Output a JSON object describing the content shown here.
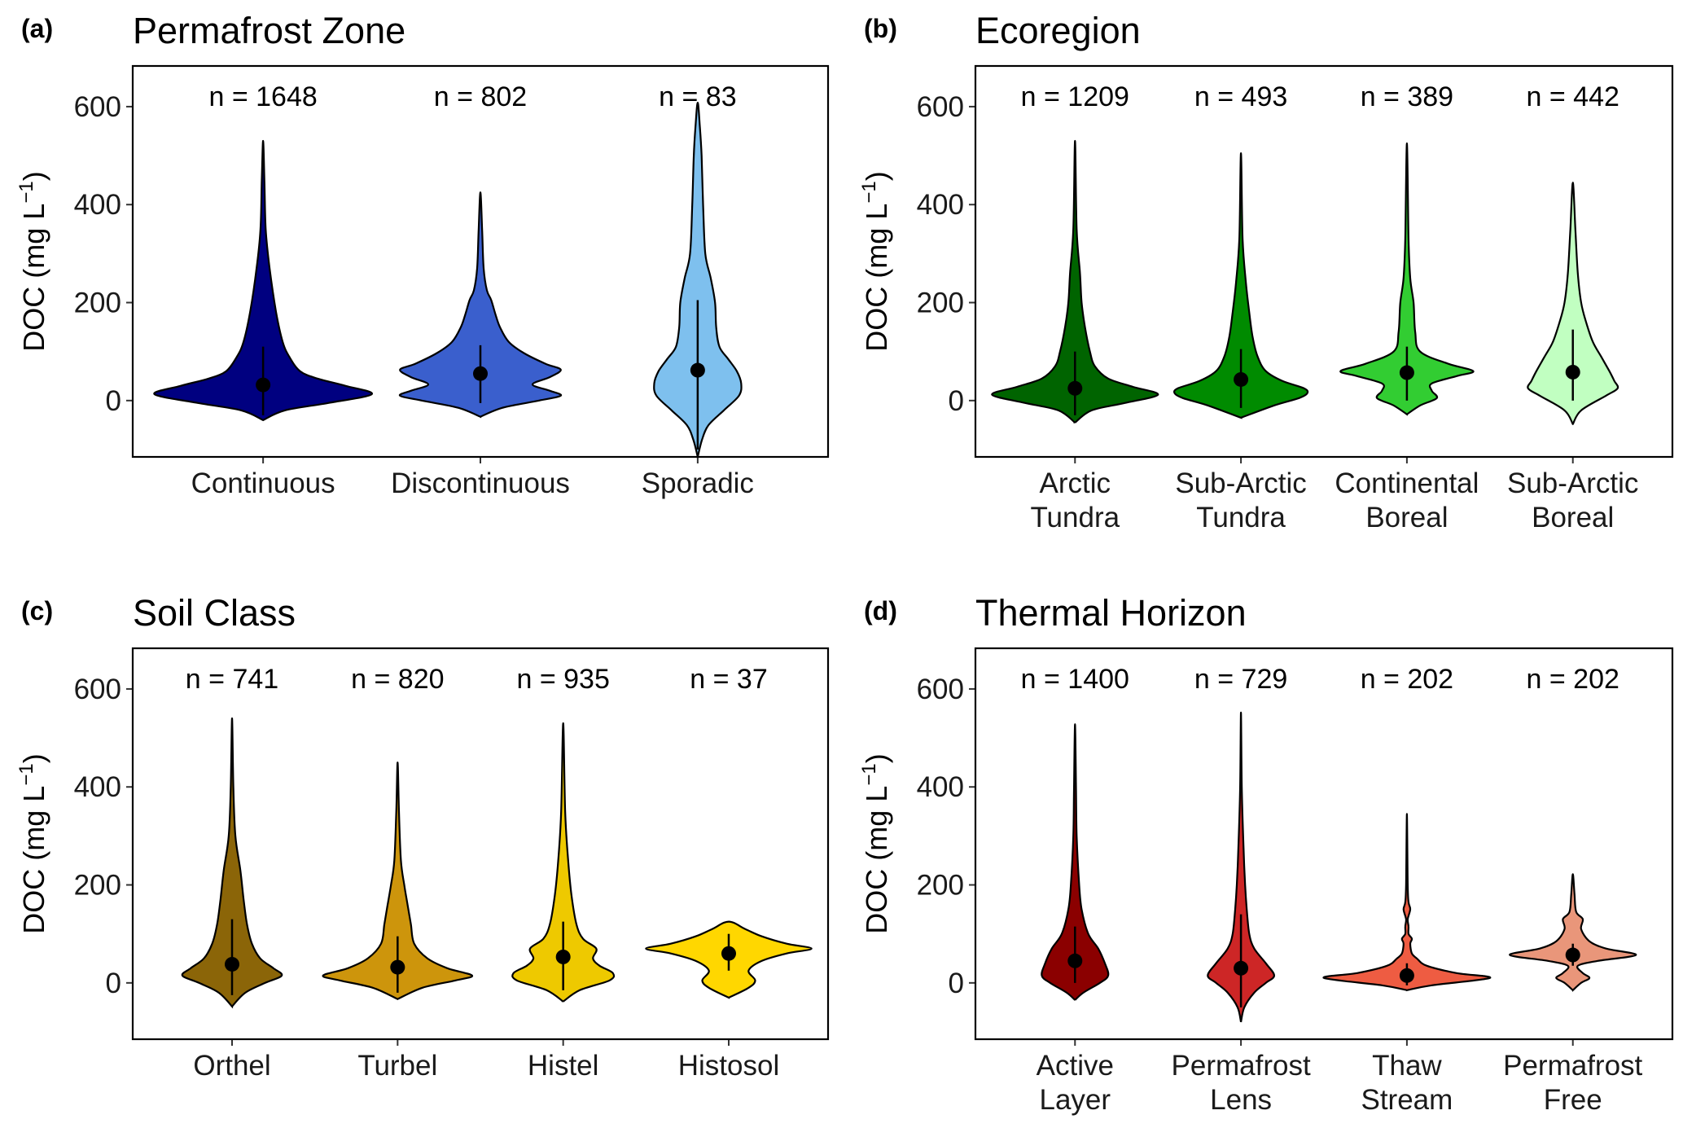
{
  "chart_data": [
    {
      "type": "violin",
      "panel_label": "(a)",
      "title": "Permafrost Zone",
      "ylabel": {
        "main": "DOC (mg L",
        "sup": "−1",
        "close": ")"
      },
      "ylim": [
        -115,
        683
      ],
      "yticks": [
        "0",
        "200",
        "400",
        "600"
      ],
      "categories": [
        [
          "Continuous"
        ],
        [
          "Discontinuous"
        ],
        [
          "Sporadic"
        ]
      ],
      "n_labels": [
        "n = 1648",
        "n = 802",
        "n = 83"
      ],
      "colors": [
        "#000080",
        "#3a5fcd",
        "#7ec0ee"
      ],
      "medians": [
        32,
        55,
        62
      ],
      "lines": [
        [
          -30,
          110
        ],
        [
          -5,
          113
        ],
        [
          -100,
          205
        ]
      ],
      "density": [
        [
          [
            -40,
            0
          ],
          [
            -20,
            0.1
          ],
          [
            -5,
            0.3
          ],
          [
            13,
            0.5
          ],
          [
            30,
            0.38
          ],
          [
            45,
            0.25
          ],
          [
            60,
            0.17
          ],
          [
            90,
            0.12
          ],
          [
            120,
            0.09
          ],
          [
            180,
            0.06
          ],
          [
            270,
            0.03
          ],
          [
            350,
            0.012
          ],
          [
            450,
            0.006
          ],
          [
            530,
            0
          ]
        ],
        [
          [
            -33,
            0
          ],
          [
            -15,
            0.1
          ],
          [
            0,
            0.27
          ],
          [
            10,
            0.37
          ],
          [
            20,
            0.32
          ],
          [
            33,
            0.24
          ],
          [
            48,
            0.32
          ],
          [
            63,
            0.37
          ],
          [
            75,
            0.3
          ],
          [
            97,
            0.2
          ],
          [
            120,
            0.13
          ],
          [
            150,
            0.09
          ],
          [
            175,
            0.07
          ],
          [
            205,
            0.05
          ],
          [
            225,
            0.03
          ],
          [
            270,
            0.015
          ],
          [
            350,
            0.008
          ],
          [
            425,
            0
          ]
        ],
        [
          [
            -115,
            0
          ],
          [
            -80,
            0.02
          ],
          [
            -50,
            0.05
          ],
          [
            -20,
            0.12
          ],
          [
            10,
            0.19
          ],
          [
            35,
            0.2
          ],
          [
            60,
            0.18
          ],
          [
            85,
            0.14
          ],
          [
            110,
            0.1
          ],
          [
            150,
            0.085
          ],
          [
            200,
            0.08
          ],
          [
            250,
            0.06
          ],
          [
            300,
            0.035
          ],
          [
            400,
            0.025
          ],
          [
            500,
            0.018
          ],
          [
            560,
            0.01
          ],
          [
            608,
            0
          ]
        ]
      ]
    },
    {
      "type": "violin",
      "panel_label": "(b)",
      "title": "Ecoregion",
      "ylabel": {
        "main": "DOC (mg L",
        "sup": "−1",
        "close": ")"
      },
      "ylim": [
        -115,
        683
      ],
      "yticks": [
        "0",
        "200",
        "400",
        "600"
      ],
      "categories": [
        [
          "Arctic",
          "Tundra"
        ],
        [
          "Sub-Arctic",
          "Tundra"
        ],
        [
          "Continental",
          "Boreal"
        ],
        [
          "Sub-Arctic",
          "Boreal"
        ]
      ],
      "n_labels": [
        "n = 1209",
        "n = 493",
        "n = 389",
        "n = 442"
      ],
      "colors": [
        "#006400",
        "#008b00",
        "#32cd32",
        "#c1ffc1"
      ],
      "medians": [
        25,
        43,
        57,
        58
      ],
      "lines": [
        [
          -30,
          100
        ],
        [
          -15,
          105
        ],
        [
          0,
          110
        ],
        [
          0,
          145
        ]
      ],
      "density": [
        [
          [
            -45,
            0
          ],
          [
            -20,
            0.1
          ],
          [
            -5,
            0.3
          ],
          [
            12,
            0.5
          ],
          [
            28,
            0.35
          ],
          [
            45,
            0.2
          ],
          [
            70,
            0.12
          ],
          [
            100,
            0.09
          ],
          [
            150,
            0.06
          ],
          [
            200,
            0.04
          ],
          [
            260,
            0.03
          ],
          [
            350,
            0.01
          ],
          [
            530,
            0
          ]
        ],
        [
          [
            -35,
            0
          ],
          [
            -10,
            0.2
          ],
          [
            5,
            0.35
          ],
          [
            15,
            0.4
          ],
          [
            25,
            0.38
          ],
          [
            40,
            0.25
          ],
          [
            60,
            0.15
          ],
          [
            90,
            0.1
          ],
          [
            130,
            0.07
          ],
          [
            180,
            0.05
          ],
          [
            240,
            0.03
          ],
          [
            330,
            0.01
          ],
          [
            505,
            0
          ]
        ],
        [
          [
            -28,
            0
          ],
          [
            -10,
            0.08
          ],
          [
            5,
            0.18
          ],
          [
            20,
            0.15
          ],
          [
            35,
            0.15
          ],
          [
            50,
            0.3
          ],
          [
            60,
            0.4
          ],
          [
            75,
            0.25
          ],
          [
            100,
            0.08
          ],
          [
            140,
            0.05
          ],
          [
            200,
            0.04
          ],
          [
            250,
            0.02
          ],
          [
            330,
            0.01
          ],
          [
            525,
            0
          ]
        ],
        [
          [
            -48,
            0
          ],
          [
            -20,
            0.05
          ],
          [
            10,
            0.2
          ],
          [
            25,
            0.27
          ],
          [
            40,
            0.25
          ],
          [
            60,
            0.22
          ],
          [
            90,
            0.17
          ],
          [
            120,
            0.12
          ],
          [
            160,
            0.08
          ],
          [
            200,
            0.05
          ],
          [
            260,
            0.03
          ],
          [
            350,
            0.015
          ],
          [
            445,
            0
          ]
        ]
      ]
    },
    {
      "type": "violin",
      "panel_label": "(c)",
      "title": "Soil Class",
      "ylabel": {
        "main": "DOC (mg L",
        "sup": "−1",
        "close": ")"
      },
      "ylim": [
        -115,
        683
      ],
      "yticks": [
        "0",
        "200",
        "400",
        "600"
      ],
      "categories": [
        [
          "Orthel"
        ],
        [
          "Turbel"
        ],
        [
          "Histel"
        ],
        [
          "Histosol"
        ]
      ],
      "n_labels": [
        "n = 741",
        "n = 820",
        "n = 935",
        "n = 37"
      ],
      "colors": [
        "#8b6508",
        "#cd950c",
        "#eec900",
        "#ffd700"
      ],
      "medians": [
        38,
        32,
        53,
        60
      ],
      "lines": [
        [
          -25,
          130
        ],
        [
          -20,
          95
        ],
        [
          -15,
          125
        ],
        [
          25,
          100
        ]
      ],
      "density": [
        [
          [
            -48,
            0
          ],
          [
            -20,
            0.08
          ],
          [
            0,
            0.2
          ],
          [
            15,
            0.3
          ],
          [
            30,
            0.25
          ],
          [
            50,
            0.17
          ],
          [
            80,
            0.12
          ],
          [
            120,
            0.09
          ],
          [
            170,
            0.07
          ],
          [
            230,
            0.05
          ],
          [
            300,
            0.02
          ],
          [
            400,
            0.008
          ],
          [
            540,
            0
          ]
        ],
        [
          [
            -33,
            0
          ],
          [
            -10,
            0.15
          ],
          [
            5,
            0.35
          ],
          [
            15,
            0.45
          ],
          [
            30,
            0.3
          ],
          [
            50,
            0.18
          ],
          [
            80,
            0.1
          ],
          [
            120,
            0.08
          ],
          [
            160,
            0.06
          ],
          [
            200,
            0.04
          ],
          [
            250,
            0.02
          ],
          [
            350,
            0.008
          ],
          [
            450,
            0
          ]
        ],
        [
          [
            -38,
            0
          ],
          [
            -15,
            0.1
          ],
          [
            5,
            0.28
          ],
          [
            20,
            0.3
          ],
          [
            35,
            0.22
          ],
          [
            50,
            0.18
          ],
          [
            70,
            0.2
          ],
          [
            90,
            0.12
          ],
          [
            120,
            0.08
          ],
          [
            180,
            0.05
          ],
          [
            250,
            0.03
          ],
          [
            350,
            0.012
          ],
          [
            530,
            0
          ]
        ],
        [
          [
            -30,
            0
          ],
          [
            -10,
            0.12
          ],
          [
            5,
            0.16
          ],
          [
            25,
            0.12
          ],
          [
            45,
            0.2
          ],
          [
            60,
            0.35
          ],
          [
            70,
            0.5
          ],
          [
            80,
            0.35
          ],
          [
            95,
            0.2
          ],
          [
            110,
            0.1
          ],
          [
            125,
            0
          ]
        ]
      ]
    },
    {
      "type": "violin",
      "panel_label": "(d)",
      "title": "Thermal Horizon",
      "ylabel": {
        "main": "DOC (mg L",
        "sup": "−1",
        "close": ")"
      },
      "ylim": [
        -115,
        683
      ],
      "yticks": [
        "0",
        "200",
        "400",
        "600"
      ],
      "categories": [
        [
          "Active",
          "Layer"
        ],
        [
          "Permafrost",
          "Lens"
        ],
        [
          "Thaw",
          "Stream"
        ],
        [
          "Permafrost",
          "Free"
        ]
      ],
      "n_labels": [
        "n = 1400",
        "n = 729",
        "n = 202",
        "n = 202"
      ],
      "colors": [
        "#8b0000",
        "#cd2626",
        "#ee5c42",
        "#e9967a"
      ],
      "medians": [
        45,
        30,
        15,
        57
      ],
      "lines": [
        [
          0,
          115
        ],
        [
          -50,
          140
        ],
        [
          -5,
          40
        ],
        [
          35,
          80
        ]
      ],
      "density": [
        [
          [
            -35,
            0
          ],
          [
            -20,
            0.05
          ],
          [
            0,
            0.15
          ],
          [
            15,
            0.2
          ],
          [
            40,
            0.18
          ],
          [
            70,
            0.14
          ],
          [
            100,
            0.08
          ],
          [
            150,
            0.04
          ],
          [
            200,
            0.025
          ],
          [
            300,
            0.01
          ],
          [
            400,
            0.006
          ],
          [
            528,
            0
          ]
        ],
        [
          [
            -80,
            0
          ],
          [
            -50,
            0.02
          ],
          [
            -20,
            0.08
          ],
          [
            0,
            0.15
          ],
          [
            15,
            0.2
          ],
          [
            40,
            0.15
          ],
          [
            70,
            0.08
          ],
          [
            100,
            0.05
          ],
          [
            150,
            0.035
          ],
          [
            200,
            0.025
          ],
          [
            280,
            0.015
          ],
          [
            400,
            0.005
          ],
          [
            552,
            0
          ]
        ],
        [
          [
            -15,
            0
          ],
          [
            -5,
            0.15
          ],
          [
            10,
            0.5
          ],
          [
            20,
            0.3
          ],
          [
            35,
            0.12
          ],
          [
            50,
            0.06
          ],
          [
            60,
            0.03
          ],
          [
            80,
            0.02
          ],
          [
            90,
            0.03
          ],
          [
            100,
            0.01
          ],
          [
            115,
            0.01
          ],
          [
            130,
            0.005
          ],
          [
            150,
            0.02
          ],
          [
            165,
            0.01
          ],
          [
            200,
            0.005
          ],
          [
            345,
            0
          ]
        ],
        [
          [
            -15,
            0
          ],
          [
            0,
            0.05
          ],
          [
            10,
            0.1
          ],
          [
            20,
            0.06
          ],
          [
            35,
            0.03
          ],
          [
            45,
            0.15
          ],
          [
            57,
            0.38
          ],
          [
            70,
            0.2
          ],
          [
            85,
            0.1
          ],
          [
            110,
            0.05
          ],
          [
            130,
            0.06
          ],
          [
            145,
            0.02
          ],
          [
            180,
            0.01
          ],
          [
            222,
            0
          ]
        ]
      ]
    }
  ]
}
